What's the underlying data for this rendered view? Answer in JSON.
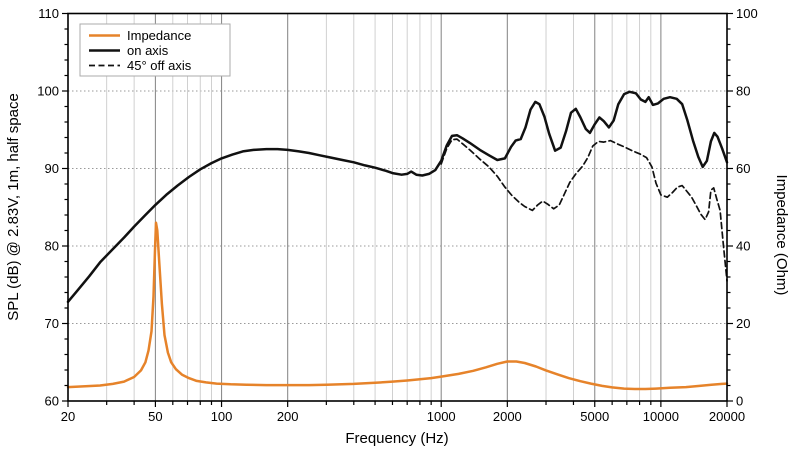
{
  "axes": {
    "x": {
      "label": "Frequency (Hz)",
      "scale": "log",
      "min": 20,
      "max": 20000,
      "ticks_labeled": [
        20,
        50,
        100,
        200,
        1000,
        2000,
        5000,
        10000,
        20000
      ],
      "ticks_minor": [
        30,
        40,
        60,
        70,
        80,
        90,
        300,
        400,
        500,
        600,
        700,
        800,
        900,
        3000,
        4000,
        6000,
        7000,
        8000,
        9000
      ]
    },
    "y_left": {
      "label": "SPL (dB) @ 2.83V, 1m, half space",
      "min": 60,
      "max": 110,
      "ticks": [
        60,
        70,
        80,
        90,
        100,
        110
      ],
      "minor_step": 2
    },
    "y_right": {
      "label": "Impedance (Ohm)",
      "min": 0,
      "max": 100,
      "ticks": [
        0,
        20,
        40,
        60,
        80,
        100
      ],
      "minor_step": 4
    }
  },
  "legend": {
    "items": [
      {
        "label": "Impedance",
        "color": "#E6832A",
        "style": "solid"
      },
      {
        "label": "on axis",
        "color": "#111111",
        "style": "solid"
      },
      {
        "label": "45° off axis",
        "color": "#111111",
        "style": "dashed"
      }
    ]
  },
  "colors": {
    "impedance": "#E6832A",
    "on_axis": "#111111",
    "off_axis": "#111111",
    "grid_minor": "#cbcbcb",
    "grid_major": "#8d8d8d",
    "grid_horizontal": "#9a9a9a",
    "axis": "#000000",
    "legend_border": "#ababab",
    "background": "#ffffff"
  },
  "chart_data": {
    "type": "line",
    "x_scale": "log",
    "x_range": [
      20,
      20000
    ],
    "y_left_range": [
      60,
      110
    ],
    "y_right_range": [
      0,
      100
    ],
    "grid": "on",
    "legend_position": "top-left",
    "series": [
      {
        "name": "Impedance",
        "axis": "right",
        "unit": "Ohm",
        "style": "solid",
        "color": "#E6832A",
        "points": [
          [
            20,
            3.6
          ],
          [
            24,
            3.8
          ],
          [
            28,
            4.0
          ],
          [
            32,
            4.4
          ],
          [
            36,
            5.0
          ],
          [
            40,
            6.2
          ],
          [
            43,
            7.9
          ],
          [
            45,
            10.0
          ],
          [
            46.5,
            13.0
          ],
          [
            48,
            18.0
          ],
          [
            49,
            27.0
          ],
          [
            49.8,
            39.0
          ],
          [
            50.3,
            46.0
          ],
          [
            51,
            44.0
          ],
          [
            52,
            36.0
          ],
          [
            53.5,
            25.0
          ],
          [
            55,
            17.0
          ],
          [
            57,
            12.5
          ],
          [
            59,
            10.0
          ],
          [
            62,
            8.2
          ],
          [
            66,
            6.8
          ],
          [
            71,
            5.9
          ],
          [
            77,
            5.2
          ],
          [
            85,
            4.8
          ],
          [
            95,
            4.5
          ],
          [
            110,
            4.3
          ],
          [
            130,
            4.2
          ],
          [
            160,
            4.1
          ],
          [
            200,
            4.1
          ],
          [
            250,
            4.1
          ],
          [
            300,
            4.2
          ],
          [
            400,
            4.4
          ],
          [
            500,
            4.7
          ],
          [
            600,
            5.0
          ],
          [
            700,
            5.3
          ],
          [
            800,
            5.6
          ],
          [
            900,
            5.9
          ],
          [
            1000,
            6.3
          ],
          [
            1200,
            7.0
          ],
          [
            1400,
            7.8
          ],
          [
            1600,
            8.7
          ],
          [
            1800,
            9.6
          ],
          [
            2000,
            10.2
          ],
          [
            2200,
            10.2
          ],
          [
            2400,
            9.8
          ],
          [
            2700,
            8.9
          ],
          [
            3000,
            7.9
          ],
          [
            3400,
            6.8
          ],
          [
            3800,
            5.9
          ],
          [
            4300,
            5.1
          ],
          [
            4800,
            4.5
          ],
          [
            5400,
            3.9
          ],
          [
            6000,
            3.5
          ],
          [
            6800,
            3.2
          ],
          [
            7600,
            3.1
          ],
          [
            8500,
            3.1
          ],
          [
            9500,
            3.2
          ],
          [
            11000,
            3.4
          ],
          [
            13000,
            3.6
          ],
          [
            15000,
            3.9
          ],
          [
            17000,
            4.2
          ],
          [
            19000,
            4.4
          ],
          [
            20000,
            4.5
          ]
        ]
      },
      {
        "name": "on axis",
        "axis": "left",
        "unit": "dB",
        "style": "solid",
        "color": "#111111",
        "points": [
          [
            20,
            72.8
          ],
          [
            22,
            74.2
          ],
          [
            25,
            76.1
          ],
          [
            28,
            77.9
          ],
          [
            32,
            79.6
          ],
          [
            36,
            81.1
          ],
          [
            40,
            82.5
          ],
          [
            45,
            84.0
          ],
          [
            50,
            85.3
          ],
          [
            56,
            86.6
          ],
          [
            63,
            87.8
          ],
          [
            71,
            88.9
          ],
          [
            80,
            89.9
          ],
          [
            90,
            90.7
          ],
          [
            100,
            91.3
          ],
          [
            112,
            91.8
          ],
          [
            125,
            92.2
          ],
          [
            140,
            92.4
          ],
          [
            160,
            92.5
          ],
          [
            180,
            92.5
          ],
          [
            200,
            92.4
          ],
          [
            225,
            92.2
          ],
          [
            250,
            92.0
          ],
          [
            280,
            91.7
          ],
          [
            315,
            91.4
          ],
          [
            355,
            91.1
          ],
          [
            400,
            90.8
          ],
          [
            450,
            90.4
          ],
          [
            500,
            90.1
          ],
          [
            560,
            89.7
          ],
          [
            600,
            89.4
          ],
          [
            660,
            89.2
          ],
          [
            700,
            89.3
          ],
          [
            730,
            89.6
          ],
          [
            770,
            89.2
          ],
          [
            820,
            89.1
          ],
          [
            880,
            89.3
          ],
          [
            940,
            89.8
          ],
          [
            1000,
            91.0
          ],
          [
            1060,
            93.0
          ],
          [
            1120,
            94.2
          ],
          [
            1180,
            94.3
          ],
          [
            1250,
            93.9
          ],
          [
            1350,
            93.3
          ],
          [
            1500,
            92.4
          ],
          [
            1650,
            91.7
          ],
          [
            1800,
            91.1
          ],
          [
            1950,
            91.3
          ],
          [
            2080,
            92.8
          ],
          [
            2180,
            93.6
          ],
          [
            2300,
            93.8
          ],
          [
            2420,
            95.3
          ],
          [
            2550,
            97.6
          ],
          [
            2680,
            98.6
          ],
          [
            2800,
            98.3
          ],
          [
            2950,
            96.7
          ],
          [
            3100,
            94.5
          ],
          [
            3300,
            92.3
          ],
          [
            3500,
            92.7
          ],
          [
            3700,
            94.8
          ],
          [
            3900,
            97.2
          ],
          [
            4100,
            97.7
          ],
          [
            4300,
            96.6
          ],
          [
            4550,
            95.1
          ],
          [
            4750,
            94.6
          ],
          [
            5000,
            95.7
          ],
          [
            5250,
            96.6
          ],
          [
            5500,
            96.1
          ],
          [
            5800,
            95.3
          ],
          [
            6100,
            96.2
          ],
          [
            6400,
            98.3
          ],
          [
            6800,
            99.6
          ],
          [
            7200,
            99.9
          ],
          [
            7700,
            99.7
          ],
          [
            8100,
            98.9
          ],
          [
            8500,
            98.6
          ],
          [
            8800,
            99.2
          ],
          [
            9200,
            98.2
          ],
          [
            9700,
            98.4
          ],
          [
            10300,
            99.0
          ],
          [
            11000,
            99.2
          ],
          [
            11800,
            99.0
          ],
          [
            12500,
            98.3
          ],
          [
            13200,
            96.2
          ],
          [
            14000,
            93.6
          ],
          [
            14800,
            91.5
          ],
          [
            15500,
            90.2
          ],
          [
            16200,
            91.0
          ],
          [
            16900,
            93.5
          ],
          [
            17500,
            94.6
          ],
          [
            18100,
            94.1
          ],
          [
            19000,
            92.6
          ],
          [
            20000,
            90.8
          ]
        ]
      },
      {
        "name": "45° off axis",
        "axis": "left",
        "unit": "dB",
        "style": "dashed",
        "color": "#111111",
        "points": [
          [
            1000,
            90.6
          ],
          [
            1060,
            92.6
          ],
          [
            1120,
            93.7
          ],
          [
            1180,
            93.8
          ],
          [
            1250,
            93.2
          ],
          [
            1350,
            92.4
          ],
          [
            1500,
            91.2
          ],
          [
            1650,
            90.2
          ],
          [
            1800,
            89.0
          ],
          [
            1950,
            87.6
          ],
          [
            2100,
            86.5
          ],
          [
            2250,
            85.7
          ],
          [
            2400,
            85.1
          ],
          [
            2600,
            84.6
          ],
          [
            2750,
            85.3
          ],
          [
            2900,
            85.8
          ],
          [
            3050,
            85.4
          ],
          [
            3250,
            84.8
          ],
          [
            3450,
            85.3
          ],
          [
            3650,
            86.8
          ],
          [
            3850,
            88.2
          ],
          [
            4100,
            89.3
          ],
          [
            4400,
            90.3
          ],
          [
            4650,
            91.4
          ],
          [
            4900,
            92.9
          ],
          [
            5200,
            93.5
          ],
          [
            5500,
            93.4
          ],
          [
            5900,
            93.6
          ],
          [
            6300,
            93.2
          ],
          [
            6800,
            92.8
          ],
          [
            7400,
            92.3
          ],
          [
            8000,
            91.9
          ],
          [
            8600,
            91.4
          ],
          [
            9100,
            90.2
          ],
          [
            9500,
            88.1
          ],
          [
            10000,
            86.6
          ],
          [
            10700,
            86.3
          ],
          [
            11300,
            86.9
          ],
          [
            11900,
            87.6
          ],
          [
            12500,
            87.8
          ],
          [
            13100,
            87.1
          ],
          [
            13800,
            86.3
          ],
          [
            14500,
            85.2
          ],
          [
            15200,
            84.1
          ],
          [
            15900,
            83.4
          ],
          [
            16500,
            84.4
          ],
          [
            16900,
            87.2
          ],
          [
            17400,
            87.5
          ],
          [
            18000,
            86.0
          ],
          [
            18600,
            84.6
          ],
          [
            19200,
            80.5
          ],
          [
            20000,
            75.5
          ]
        ]
      }
    ]
  }
}
